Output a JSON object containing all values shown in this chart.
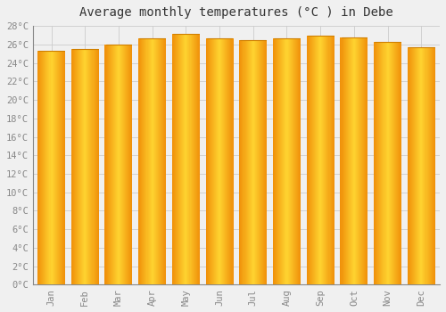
{
  "title": "Average monthly temperatures (°C ) in Debe",
  "months": [
    "Jan",
    "Feb",
    "Mar",
    "Apr",
    "May",
    "Jun",
    "Jul",
    "Aug",
    "Sep",
    "Oct",
    "Nov",
    "Dec"
  ],
  "values": [
    25.3,
    25.5,
    26.0,
    26.7,
    27.1,
    26.7,
    26.5,
    26.7,
    26.9,
    26.8,
    26.3,
    25.7
  ],
  "ylim": [
    0,
    28
  ],
  "yticks": [
    0,
    2,
    4,
    6,
    8,
    10,
    12,
    14,
    16,
    18,
    20,
    22,
    24,
    26,
    28
  ],
  "bar_color_center": "#FFD030",
  "bar_color_edge": "#F0920A",
  "background_color": "#F0F0F0",
  "grid_color": "#CCCCCC",
  "title_fontsize": 10,
  "tick_fontsize": 7.5,
  "font_family": "monospace"
}
